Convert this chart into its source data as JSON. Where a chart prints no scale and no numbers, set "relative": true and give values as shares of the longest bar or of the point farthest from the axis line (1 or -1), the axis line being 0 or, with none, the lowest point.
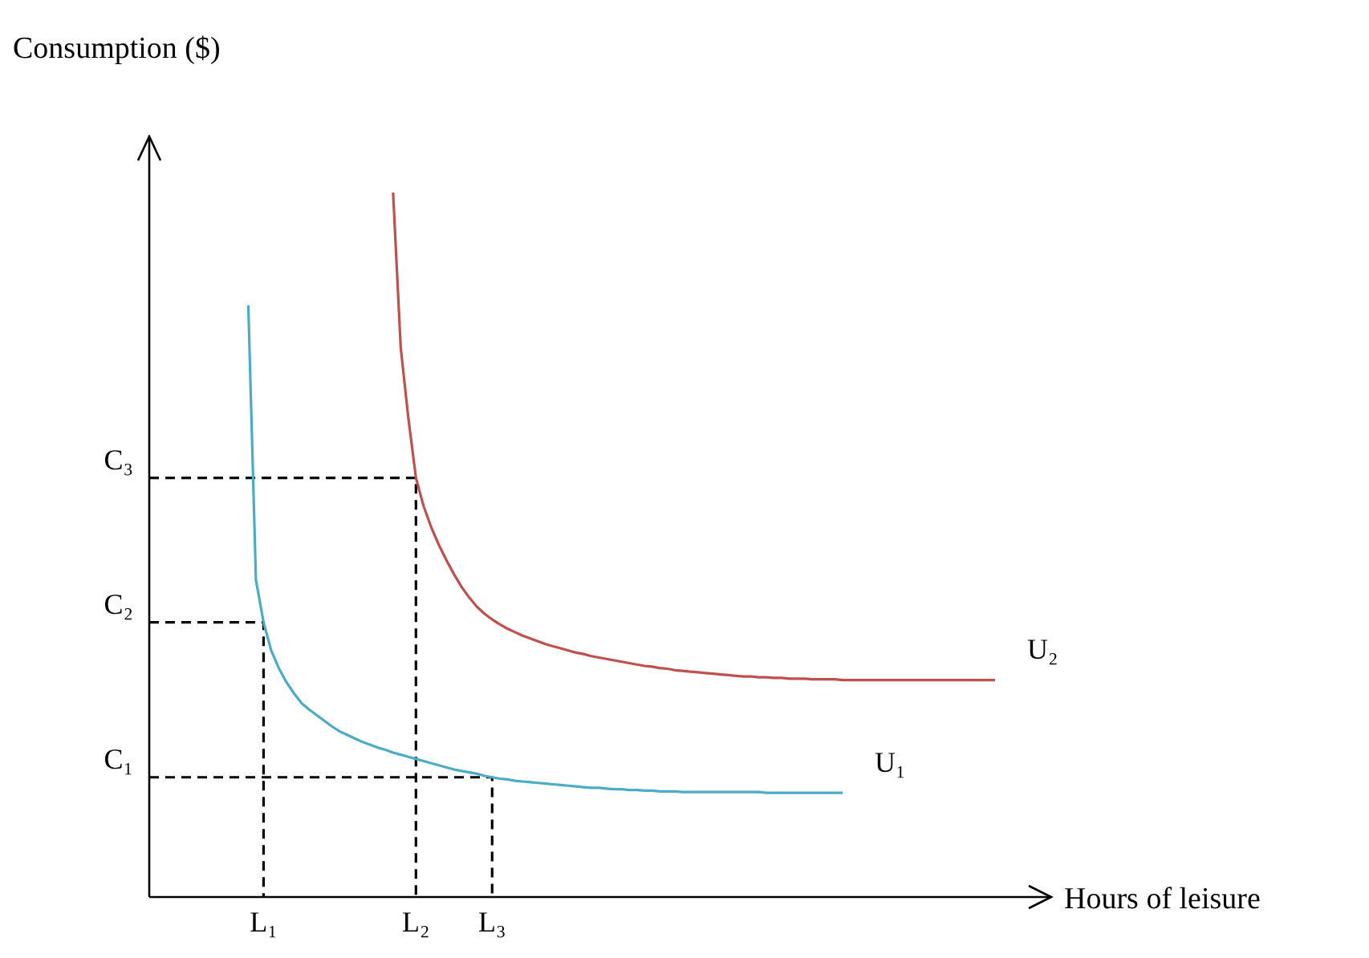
{
  "chart_data": {
    "type": "line",
    "xlabel": "Hours of leisure",
    "ylabel": "Consumption ($)",
    "relative": true,
    "grid": false,
    "legend": false,
    "marker": "none",
    "categories": [
      null,
      null,
      null,
      null,
      null,
      null,
      null,
      null,
      null,
      null,
      null,
      null,
      null,
      null,
      null,
      "L₁",
      null,
      null,
      null,
      null,
      null,
      null,
      null,
      null,
      null,
      null,
      null,
      null,
      null,
      null,
      null,
      null,
      null,
      null,
      null,
      "L₂",
      null,
      null,
      null,
      null,
      null,
      null,
      null,
      null,
      null,
      "L₃",
      null,
      null,
      null,
      null,
      null,
      null,
      null,
      null,
      null,
      null,
      null,
      null,
      null,
      null,
      null,
      null,
      null,
      null,
      null,
      null,
      null,
      null,
      null,
      null,
      null,
      null,
      null,
      null,
      null,
      null,
      null,
      null,
      null,
      null,
      null,
      null,
      null,
      null,
      null,
      null,
      null,
      null,
      null,
      null,
      null,
      null,
      null,
      null,
      null,
      null,
      null,
      null,
      null,
      null,
      null,
      null,
      null,
      null,
      null,
      null,
      null,
      null,
      null,
      null,
      null,
      null
    ],
    "series": [
      {
        "name": "U₁",
        "color": "#4bacc6",
        "line_style": "solid",
        "values": [
          null,
          null,
          null,
          null,
          null,
          null,
          null,
          null,
          null,
          null,
          null,
          null,
          null,
          0.84,
          0.45,
          0.39,
          0.35,
          0.325,
          0.305,
          0.289,
          0.275,
          0.266,
          0.258,
          0.25,
          0.242,
          0.235,
          0.23,
          0.225,
          0.22,
          0.216,
          0.212,
          0.209,
          0.205,
          0.202,
          0.199,
          0.196,
          0.193,
          0.19,
          0.187,
          0.184,
          0.181,
          0.179,
          0.177,
          0.175,
          0.172,
          0.17,
          0.168,
          0.167,
          0.165,
          0.164,
          0.163,
          0.162,
          0.161,
          0.16,
          0.159,
          0.158,
          0.157,
          0.156,
          0.155,
          0.155,
          0.154,
          0.153,
          0.153,
          0.152,
          0.152,
          0.151,
          0.151,
          0.15,
          0.15,
          0.15,
          0.149,
          0.149,
          0.149,
          0.149,
          0.149,
          0.149,
          0.149,
          0.149,
          0.149,
          0.149,
          0.149,
          0.148,
          0.148,
          0.148,
          0.148,
          0.148,
          0.148,
          0.148,
          0.148,
          0.148,
          0.148,
          0.148,
          null,
          null,
          null,
          null,
          null,
          null,
          null,
          null,
          null,
          null,
          null,
          null,
          null,
          null,
          null,
          null,
          null,
          null,
          null,
          null
        ]
      },
      {
        "name": "U₂",
        "color": "#c0504d",
        "line_style": "solid",
        "values": [
          null,
          null,
          null,
          null,
          null,
          null,
          null,
          null,
          null,
          null,
          null,
          null,
          null,
          null,
          null,
          null,
          null,
          null,
          null,
          null,
          null,
          null,
          null,
          null,
          null,
          null,
          null,
          null,
          null,
          null,
          null,
          null,
          1.0,
          0.78,
          0.68,
          0.595,
          0.555,
          0.525,
          0.5,
          0.478,
          0.458,
          0.44,
          0.425,
          0.412,
          0.402,
          0.394,
          0.387,
          0.381,
          0.376,
          0.371,
          0.367,
          0.363,
          0.359,
          0.356,
          0.353,
          0.35,
          0.347,
          0.345,
          0.342,
          0.34,
          0.338,
          0.336,
          0.334,
          0.332,
          0.33,
          0.328,
          0.327,
          0.325,
          0.324,
          0.322,
          0.321,
          0.32,
          0.319,
          0.318,
          0.317,
          0.316,
          0.315,
          0.314,
          0.313,
          0.313,
          0.312,
          0.312,
          0.311,
          0.311,
          0.31,
          0.31,
          0.31,
          0.309,
          0.309,
          0.309,
          0.309,
          0.308,
          0.308,
          0.308,
          0.308,
          0.308,
          0.308,
          0.308,
          0.308,
          0.308,
          0.308,
          0.308,
          0.308,
          0.308,
          0.308,
          0.308,
          0.308,
          0.308,
          0.308,
          0.308,
          0.308,
          0.308
        ]
      },
      {
        "name": "C₃",
        "type": "step",
        "color": "#000000",
        "line_style": "dashed",
        "values": [
          0.595,
          0.595,
          0.595,
          0.595,
          0.595,
          0.595,
          0.595,
          0.595,
          0.595,
          0.595,
          0.595,
          0.595,
          0.595,
          0.595,
          0.595,
          0.595,
          0.595,
          0.595,
          0.595,
          0.595,
          0.595,
          0.595,
          0.595,
          0.595,
          0.595,
          0.595,
          0.595,
          0.595,
          0.595,
          0.595,
          0.595,
          0.595,
          0.595,
          0.595,
          0.595,
          0,
          null,
          null,
          null,
          null,
          null,
          null,
          null,
          null,
          null,
          null,
          null,
          null,
          null,
          null,
          null,
          null,
          null,
          null,
          null,
          null,
          null,
          null,
          null,
          null,
          null,
          null,
          null,
          null,
          null,
          null,
          null,
          null,
          null,
          null,
          null,
          null,
          null,
          null,
          null,
          null,
          null,
          null,
          null,
          null,
          null,
          null,
          null,
          null,
          null,
          null,
          null,
          null,
          null,
          null,
          null,
          null,
          null,
          null,
          null,
          null,
          null,
          null,
          null,
          null,
          null,
          null,
          null,
          null,
          null,
          null,
          null,
          null,
          null,
          null,
          null,
          null
        ]
      },
      {
        "name": "C₂",
        "type": "step",
        "color": "#000000",
        "line_style": "dashed",
        "values": [
          0.39,
          0.39,
          0.39,
          0.39,
          0.39,
          0.39,
          0.39,
          0.39,
          0.39,
          0.39,
          0.39,
          0.39,
          0.39,
          0.39,
          0.39,
          0,
          null,
          null,
          null,
          null,
          null,
          null,
          null,
          null,
          null,
          null,
          null,
          null,
          null,
          null,
          null,
          null,
          null,
          null,
          null,
          null,
          null,
          null,
          null,
          null,
          null,
          null,
          null,
          null,
          null,
          null,
          null,
          null,
          null,
          null,
          null,
          null,
          null,
          null,
          null,
          null,
          null,
          null,
          null,
          null,
          null,
          null,
          null,
          null,
          null,
          null,
          null,
          null,
          null,
          null,
          null,
          null,
          null,
          null,
          null,
          null,
          null,
          null,
          null,
          null,
          null,
          null,
          null,
          null,
          null,
          null,
          null,
          null,
          null,
          null,
          null,
          null,
          null,
          null,
          null,
          null,
          null,
          null,
          null,
          null,
          null,
          null,
          null,
          null,
          null,
          null,
          null,
          null,
          null,
          null,
          null,
          null
        ]
      },
      {
        "name": "C₁",
        "type": "step",
        "color": "#000000",
        "line_style": "dashed",
        "values": [
          0.17,
          0.17,
          0.17,
          0.17,
          0.17,
          0.17,
          0.17,
          0.17,
          0.17,
          0.17,
          0.17,
          0.17,
          0.17,
          0.17,
          0.17,
          0.17,
          0.17,
          0.17,
          0.17,
          0.17,
          0.17,
          0.17,
          0.17,
          0.17,
          0.17,
          0.17,
          0.17,
          0.17,
          0.17,
          0.17,
          0.17,
          0.17,
          0.17,
          0.17,
          0.17,
          0.17,
          0.17,
          0.17,
          0.17,
          0.17,
          0.17,
          0.17,
          0.17,
          0.17,
          0.17,
          0,
          null,
          null,
          null,
          null,
          null,
          null,
          null,
          null,
          null,
          null,
          null,
          null,
          null,
          null,
          null,
          null,
          null,
          null,
          null,
          null,
          null,
          null,
          null,
          null,
          null,
          null,
          null,
          null,
          null,
          null,
          null,
          null,
          null,
          null,
          null,
          null,
          null,
          null,
          null,
          null,
          null,
          null,
          null,
          null,
          null,
          null,
          null,
          null,
          null,
          null,
          null,
          null,
          null,
          null,
          null,
          null,
          null,
          null,
          null,
          null,
          null,
          null,
          null,
          null,
          null,
          null
        ]
      }
    ]
  }
}
